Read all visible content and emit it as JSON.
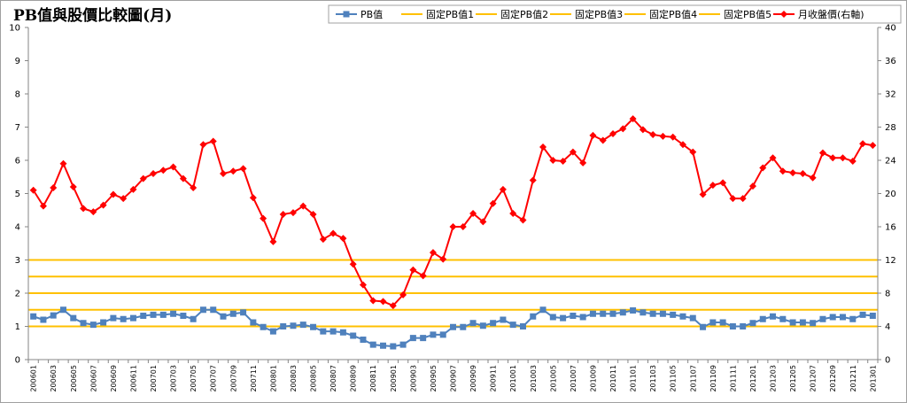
{
  "chart_data": {
    "type": "line",
    "title": "PB值與股價比較圖(月)",
    "legend_position": "top-right",
    "grid": false,
    "colors": {
      "pb": "#4f81bd",
      "fixed": "#ffc000",
      "price": "#ff0000"
    },
    "y_left": {
      "range": [
        0,
        10
      ],
      "ticks": [
        "0",
        "1",
        "2",
        "3",
        "4",
        "5",
        "6",
        "7",
        "8",
        "9",
        "10"
      ]
    },
    "y_right": {
      "range": [
        0,
        40
      ],
      "ticks": [
        "0",
        "4",
        "8",
        "12",
        "16",
        "20",
        "24",
        "28",
        "32",
        "36",
        "40"
      ]
    },
    "x_tick_labels": [
      "200601",
      "200603",
      "200605",
      "200607",
      "200609",
      "200611",
      "200701",
      "200703",
      "200705",
      "200707",
      "200709",
      "200711",
      "200801",
      "200803",
      "200805",
      "200807",
      "200809",
      "200811",
      "200901",
      "200903",
      "200905",
      "200907",
      "200909",
      "200911",
      "201001",
      "201003",
      "201005",
      "201007",
      "201009",
      "201011",
      "201101",
      "201103",
      "201105",
      "201107",
      "201109",
      "201111",
      "201201",
      "201203",
      "201205",
      "201207",
      "201209",
      "201211",
      "201301"
    ],
    "series": [
      {
        "name": "PB值",
        "axis": "left",
        "marker": "square",
        "values": [
          1.3,
          1.2,
          1.33,
          1.5,
          1.25,
          1.1,
          1.05,
          1.12,
          1.25,
          1.22,
          1.25,
          1.32,
          1.35,
          1.35,
          1.38,
          1.32,
          1.22,
          1.5,
          1.5,
          1.3,
          1.38,
          1.42,
          1.12,
          0.98,
          0.85,
          1.0,
          1.02,
          1.05,
          0.98,
          0.85,
          0.85,
          0.82,
          0.72,
          0.6,
          0.45,
          0.42,
          0.4,
          0.45,
          0.65,
          0.65,
          0.75,
          0.75,
          0.98,
          0.98,
          1.1,
          1.02,
          1.1,
          1.2,
          1.05,
          1.0,
          1.3,
          1.5,
          1.28,
          1.25,
          1.32,
          1.28,
          1.38,
          1.38,
          1.38,
          1.42,
          1.48,
          1.42,
          1.38,
          1.38,
          1.35,
          1.3,
          1.25,
          0.98,
          1.12,
          1.12,
          1.0,
          1.0,
          1.1,
          1.22,
          1.3,
          1.22,
          1.12,
          1.12,
          1.1,
          1.22,
          1.28,
          1.28,
          1.22,
          1.35,
          1.32
        ]
      },
      {
        "name": "固定PB值1",
        "axis": "left",
        "constant": 1.0
      },
      {
        "name": "固定PB值2",
        "axis": "left",
        "constant": 1.5
      },
      {
        "name": "固定PB值3",
        "axis": "left",
        "constant": 2.0
      },
      {
        "name": "固定PB值4",
        "axis": "left",
        "constant": 2.5
      },
      {
        "name": "固定PB值5",
        "axis": "left",
        "constant": 3.0
      },
      {
        "name": "月收盤價(右軸)",
        "axis": "right",
        "marker": "diamond",
        "values": [
          20.4,
          18.5,
          20.7,
          23.6,
          20.8,
          18.2,
          17.8,
          18.6,
          19.9,
          19.4,
          20.5,
          21.8,
          22.4,
          22.8,
          23.2,
          21.8,
          20.7,
          25.9,
          26.3,
          22.4,
          22.7,
          23.0,
          19.5,
          17.0,
          14.2,
          17.5,
          17.7,
          18.5,
          17.5,
          14.5,
          15.2,
          14.6,
          11.5,
          9.0,
          7.1,
          7.0,
          6.5,
          7.8,
          10.8,
          10.1,
          12.9,
          12.1,
          16.0,
          16.0,
          17.6,
          16.6,
          18.8,
          20.5,
          17.6,
          16.8,
          21.6,
          25.6,
          24.0,
          23.9,
          25.0,
          23.7,
          27.0,
          26.4,
          27.2,
          27.8,
          29.0,
          27.7,
          27.1,
          26.9,
          26.8,
          25.9,
          25.0,
          19.9,
          21.0,
          21.3,
          19.4,
          19.4,
          20.9,
          23.1,
          24.3,
          22.7,
          22.5,
          22.4,
          21.9,
          24.9,
          24.3,
          24.3,
          23.9,
          26.0,
          25.8
        ]
      }
    ]
  }
}
